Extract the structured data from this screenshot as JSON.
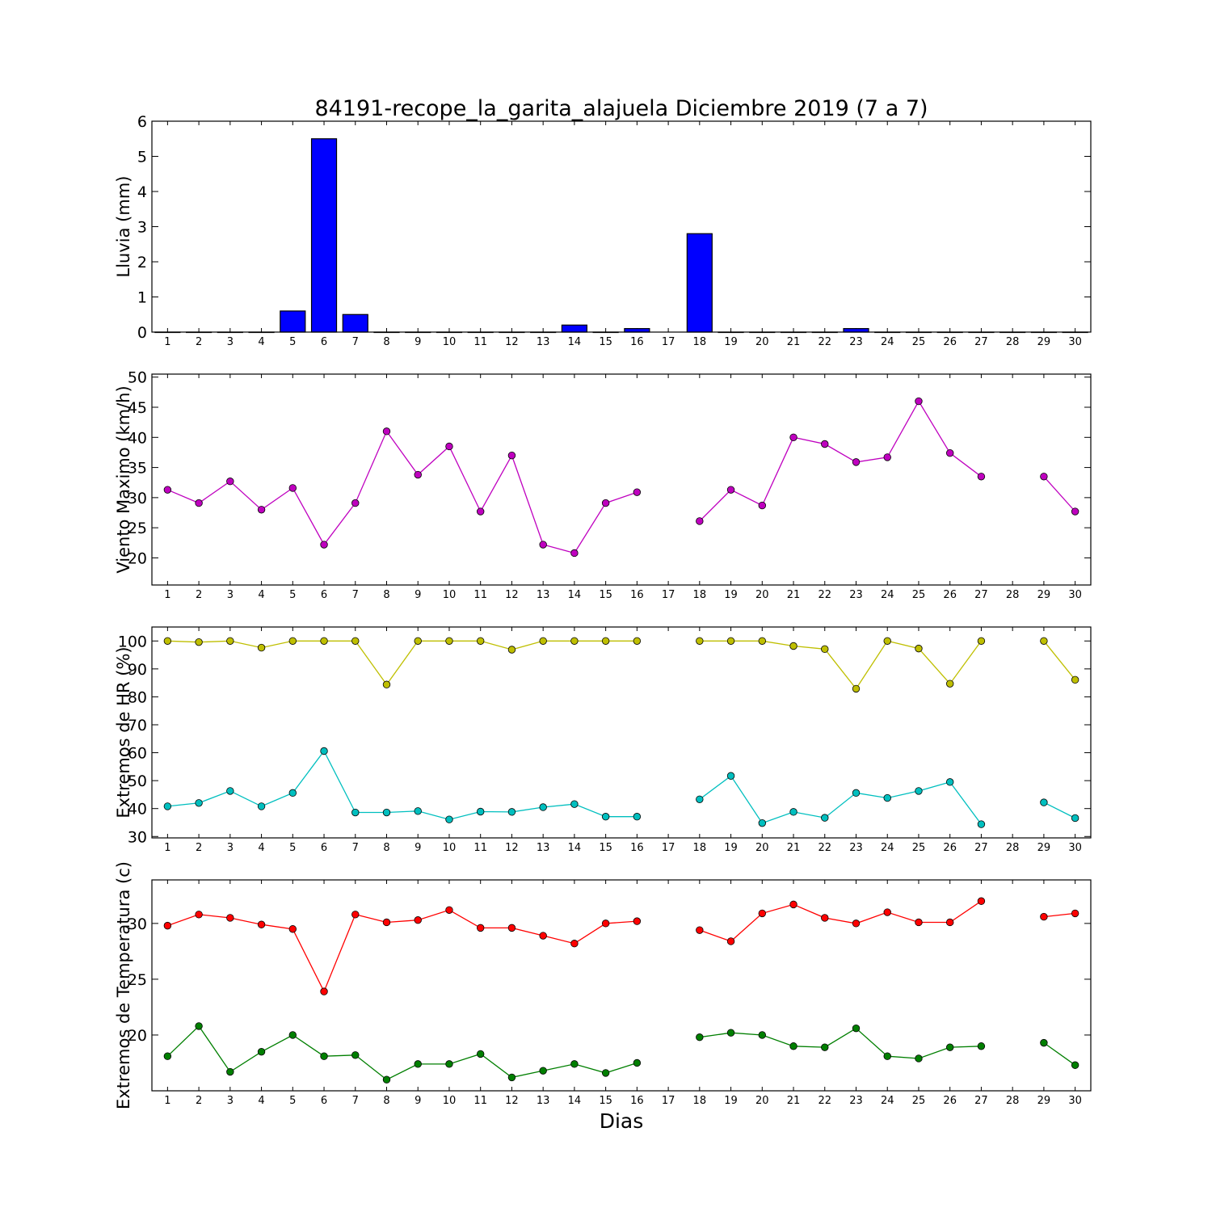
{
  "title": "84191-recope_la_garita_alajuela Diciembre 2019  (7 a 7)",
  "xlabel": "Dias",
  "chart_data": [
    {
      "type": "bar",
      "ylabel": "Lluvia (mm)",
      "ylim": [
        0,
        6
      ],
      "yticks": [
        0,
        1,
        2,
        3,
        4,
        5,
        6
      ],
      "x": [
        1,
        2,
        3,
        4,
        5,
        6,
        7,
        8,
        9,
        10,
        11,
        12,
        13,
        14,
        15,
        16,
        17,
        18,
        19,
        20,
        21,
        22,
        23,
        24,
        25,
        26,
        27,
        28,
        29,
        30
      ],
      "xticks": [
        "1",
        "2",
        "3",
        "4",
        "5",
        "6",
        "7",
        "8",
        "9",
        "10",
        "11",
        "12",
        "13",
        "14",
        "15",
        "16",
        "17",
        "18",
        "19",
        "20",
        "21",
        "22",
        "23",
        "24",
        "25",
        "26",
        "27",
        "28",
        "29",
        "30"
      ],
      "series": [
        {
          "color": "#0000ff",
          "values": [
            0,
            0,
            0,
            0,
            0.6,
            5.5,
            0.5,
            0,
            0,
            0,
            0,
            0,
            0,
            0.2,
            0,
            0.1,
            null,
            2.8,
            0,
            0,
            0,
            0,
            0.1,
            0,
            0,
            0,
            0,
            0,
            0,
            0
          ]
        }
      ]
    },
    {
      "type": "line",
      "ylabel": "Viento Maximo (km/h)",
      "ylim": [
        15.5,
        50.5
      ],
      "yticks": [
        20,
        25,
        30,
        35,
        40,
        45,
        50
      ],
      "x": [
        1,
        2,
        3,
        4,
        5,
        6,
        7,
        8,
        9,
        10,
        11,
        12,
        13,
        14,
        15,
        16,
        17,
        18,
        19,
        20,
        21,
        22,
        23,
        24,
        25,
        26,
        27,
        28,
        29,
        30
      ],
      "xticks": [
        "1",
        "2",
        "3",
        "4",
        "5",
        "6",
        "7",
        "8",
        "9",
        "10",
        "11",
        "12",
        "13",
        "14",
        "15",
        "16",
        "17",
        "18",
        "19",
        "20",
        "21",
        "22",
        "23",
        "24",
        "25",
        "26",
        "27",
        "28",
        "29",
        "30"
      ],
      "series": [
        {
          "color": "#bf00bf",
          "values": [
            31.3,
            29.1,
            32.7,
            28.0,
            31.6,
            22.2,
            29.1,
            41.0,
            33.8,
            38.5,
            27.7,
            37.0,
            22.2,
            20.8,
            29.1,
            30.9,
            null,
            26.1,
            31.3,
            28.7,
            40.0,
            38.9,
            35.9,
            36.7,
            46.0,
            37.4,
            33.5,
            null,
            33.5,
            27.7
          ]
        }
      ]
    },
    {
      "type": "line",
      "ylabel": "Extremos de HR (%)",
      "ylim": [
        29.5,
        105
      ],
      "yticks": [
        30,
        40,
        50,
        60,
        70,
        80,
        90,
        100
      ],
      "x": [
        1,
        2,
        3,
        4,
        5,
        6,
        7,
        8,
        9,
        10,
        11,
        12,
        13,
        14,
        15,
        16,
        17,
        18,
        19,
        20,
        21,
        22,
        23,
        24,
        25,
        26,
        27,
        28,
        29,
        30
      ],
      "xticks": [
        "1",
        "2",
        "3",
        "4",
        "5",
        "6",
        "7",
        "8",
        "9",
        "10",
        "11",
        "12",
        "13",
        "14",
        "15",
        "16",
        "17",
        "18",
        "19",
        "20",
        "21",
        "22",
        "23",
        "24",
        "25",
        "26",
        "27",
        "28",
        "29",
        "30"
      ],
      "series": [
        {
          "color": "#bfbf00",
          "values": [
            100,
            99.6,
            100,
            97.6,
            100,
            100,
            100,
            84.4,
            100,
            100,
            100,
            96.9,
            100,
            100,
            100,
            100,
            null,
            100,
            100,
            100,
            98.2,
            97.1,
            82.9,
            100,
            97.3,
            84.7,
            100,
            null,
            100,
            86.1
          ]
        },
        {
          "color": "#00bfbf",
          "values": [
            40.8,
            42.0,
            46.3,
            40.8,
            45.6,
            60.6,
            38.6,
            38.6,
            39.1,
            36.1,
            38.9,
            38.8,
            40.5,
            41.6,
            37.1,
            37.1,
            null,
            43.3,
            51.7,
            34.8,
            38.8,
            36.7,
            45.6,
            43.8,
            46.3,
            49.5,
            34.4,
            null,
            42.2,
            36.6
          ]
        }
      ]
    },
    {
      "type": "line",
      "ylabel": "Extremos de Temperatura (c)",
      "ylim": [
        15,
        33.9
      ],
      "yticks": [
        20,
        25,
        30
      ],
      "x": [
        1,
        2,
        3,
        4,
        5,
        6,
        7,
        8,
        9,
        10,
        11,
        12,
        13,
        14,
        15,
        16,
        17,
        18,
        19,
        20,
        21,
        22,
        23,
        24,
        25,
        26,
        27,
        28,
        29,
        30
      ],
      "xticks": [
        "1",
        "2",
        "3",
        "4",
        "5",
        "6",
        "7",
        "8",
        "9",
        "10",
        "11",
        "12",
        "13",
        "14",
        "15",
        "16",
        "17",
        "18",
        "19",
        "20",
        "21",
        "22",
        "23",
        "24",
        "25",
        "26",
        "27",
        "28",
        "29",
        "30"
      ],
      "series": [
        {
          "color": "#ff0000",
          "values": [
            29.8,
            30.8,
            30.5,
            29.9,
            29.5,
            23.9,
            30.8,
            30.1,
            30.3,
            31.2,
            29.6,
            29.6,
            28.9,
            28.2,
            30.0,
            30.2,
            null,
            29.4,
            28.4,
            30.9,
            31.7,
            30.5,
            30.0,
            31.0,
            30.1,
            30.1,
            32.0,
            null,
            30.6,
            30.9
          ]
        },
        {
          "color": "#007f00",
          "values": [
            18.1,
            20.8,
            16.7,
            18.5,
            20.0,
            18.1,
            18.2,
            16.0,
            17.4,
            17.4,
            18.3,
            16.2,
            16.8,
            17.4,
            16.6,
            17.5,
            null,
            19.8,
            20.2,
            20.0,
            19.0,
            18.9,
            20.6,
            18.1,
            17.9,
            18.9,
            19.0,
            null,
            19.3,
            17.3
          ]
        }
      ]
    }
  ]
}
